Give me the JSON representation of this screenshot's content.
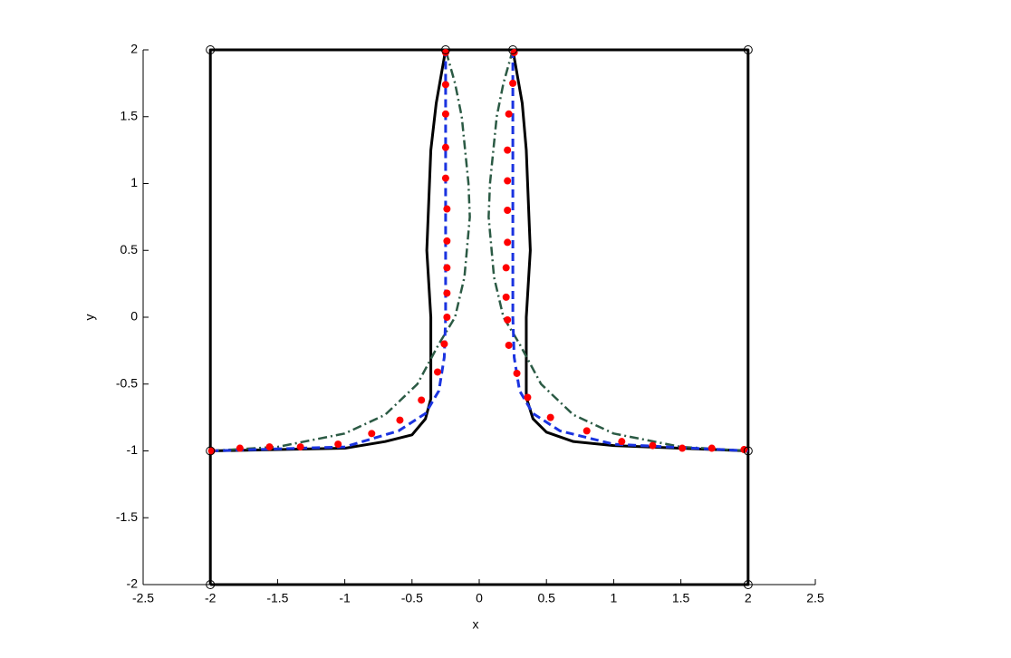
{
  "chart_data": {
    "type": "line",
    "xlabel": "x",
    "ylabel": "y",
    "xlim": [
      -2.5,
      2.5
    ],
    "xticks": [
      -2.5,
      -2,
      -1.5,
      -1,
      -0.5,
      0,
      0.5,
      1,
      1.5,
      2,
      2.5
    ],
    "ylim": [
      -2,
      2
    ],
    "yticks": [
      -2,
      -1.5,
      -1,
      -0.5,
      0,
      0.5,
      1,
      1.5,
      2
    ],
    "series": [
      {
        "color": "#000000",
        "line": "solid",
        "marker": "none",
        "x": [
          -2,
          -2,
          2,
          2,
          -2
        ],
        "values": [
          -2,
          2,
          2,
          -2,
          -2
        ]
      },
      {
        "color": "#000000",
        "line": "solid",
        "marker": "none",
        "x": [
          -2,
          -1,
          -0.7,
          -0.5,
          -0.4,
          -0.36,
          -0.36,
          -0.36,
          -0.39,
          -0.36,
          -0.32,
          -0.25
        ],
        "values": [
          -1,
          -0.98,
          -0.93,
          -0.88,
          -0.76,
          -0.61,
          -0.3,
          0,
          0.5,
          1.25,
          1.6,
          2
        ]
      },
      {
        "color": "#000000",
        "line": "solid",
        "marker": "none",
        "x": [
          0.25,
          0.32,
          0.35,
          0.38,
          0.35,
          0.35,
          0.4,
          0.5,
          0.7,
          1,
          2
        ],
        "values": [
          2,
          1.6,
          1.25,
          0.5,
          0,
          -0.6,
          -0.76,
          -0.86,
          -0.93,
          -0.96,
          -1
        ]
      },
      {
        "color": "#2b5a44",
        "line": "dashdot",
        "marker": "none",
        "x": [
          -2,
          -1.5,
          -1,
          -0.7,
          -0.46,
          -0.3,
          -0.18,
          -0.11,
          -0.07,
          -0.08,
          -0.13,
          -0.18,
          -0.25
        ],
        "values": [
          -1,
          -0.97,
          -0.87,
          -0.73,
          -0.5,
          -0.2,
          0,
          0.3,
          0.75,
          1,
          1.5,
          1.75,
          2
        ]
      },
      {
        "color": "#2b5a44",
        "line": "dashdot",
        "marker": "none",
        "x": [
          0.25,
          0.18,
          0.13,
          0.08,
          0.07,
          0.11,
          0.18,
          0.3,
          0.46,
          0.7,
          1,
          1.5,
          2
        ],
        "values": [
          2,
          1.75,
          1.5,
          1,
          0.75,
          0.3,
          0,
          -0.2,
          -0.5,
          -0.73,
          -0.87,
          -0.97,
          -1
        ]
      },
      {
        "color": "#1a33e0",
        "line": "dashed",
        "marker": "none",
        "x": [
          -2,
          -1,
          -0.6,
          -0.4,
          -0.3,
          -0.26,
          -0.25,
          -0.25,
          -0.25
        ],
        "values": [
          -1,
          -0.97,
          -0.85,
          -0.72,
          -0.55,
          -0.3,
          0,
          1,
          2
        ]
      },
      {
        "color": "#1a33e0",
        "line": "dashed",
        "marker": "none",
        "x": [
          0.25,
          0.25,
          0.25,
          0.26,
          0.3,
          0.4,
          0.6,
          1,
          2
        ],
        "values": [
          2,
          1,
          0,
          -0.3,
          -0.55,
          -0.72,
          -0.85,
          -0.95,
          -1
        ]
      },
      {
        "color": "#ff0000",
        "line": "none",
        "marker": "dot",
        "x": [
          -1.99,
          -1.78,
          -1.56,
          -1.33,
          -1.05,
          -0.8,
          -0.59,
          -0.43,
          -0.31,
          -0.26,
          -0.24,
          -0.24,
          -0.24,
          -0.24,
          -0.24,
          -0.25,
          -0.25,
          -0.25,
          -0.25,
          -0.25
        ],
        "values": [
          -1,
          -0.98,
          -0.97,
          -0.97,
          -0.95,
          -0.87,
          -0.77,
          -0.62,
          -0.41,
          -0.2,
          0,
          0.18,
          0.37,
          0.57,
          0.81,
          1.04,
          1.27,
          1.52,
          1.74,
          1.98
        ]
      },
      {
        "color": "#ff0000",
        "line": "none",
        "marker": "dot",
        "x": [
          0.26,
          0.25,
          0.22,
          0.21,
          0.21,
          0.21,
          0.21,
          0.2,
          0.2,
          0.21,
          0.22,
          0.28,
          0.36,
          0.53,
          0.8,
          1.06,
          1.29,
          1.51,
          1.73,
          1.97
        ],
        "values": [
          1.98,
          1.75,
          1.52,
          1.25,
          1.02,
          0.8,
          0.56,
          0.37,
          0.15,
          -0.02,
          -0.21,
          -0.42,
          -0.6,
          -0.75,
          -0.85,
          -0.93,
          -0.96,
          -0.98,
          -0.98,
          -0.99
        ]
      },
      {
        "color": "#000000",
        "line": "none",
        "marker": "circle",
        "x": [
          -2,
          -0.25,
          0.25,
          2,
          -2,
          2,
          -2,
          2
        ],
        "values": [
          2,
          2,
          2,
          2,
          -1,
          -1,
          -2,
          -2
        ]
      }
    ]
  }
}
